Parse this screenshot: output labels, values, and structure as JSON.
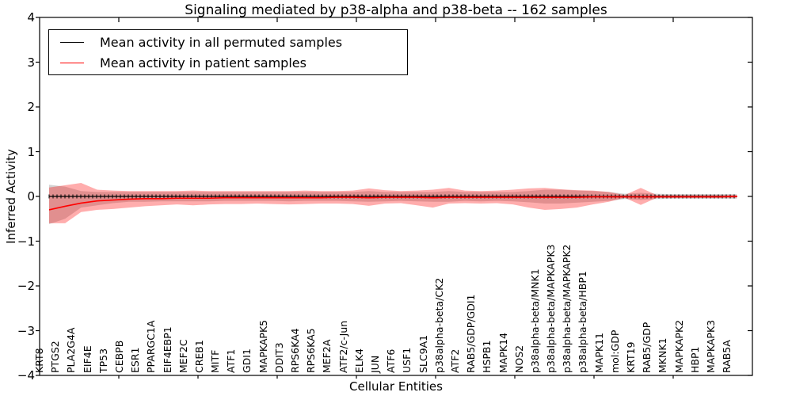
{
  "chart_data": {
    "type": "line",
    "title": "Signaling mediated by p38-alpha and p38-beta -- 162 samples",
    "xlabel": "Cellular Entities",
    "ylabel": "Inferred Activity",
    "ylim": [
      -4,
      4
    ],
    "yticks": [
      4,
      3,
      2,
      1,
      0,
      -1,
      -2,
      -3,
      -4
    ],
    "grid": false,
    "legend_position": "upper left",
    "categories": [
      "KRT8",
      "PTGS2",
      "PLA2G4A",
      "EIF4E",
      "TP53",
      "CEBPB",
      "ESR1",
      "PPARGC1A",
      "EIF4EBP1",
      "MEF2C",
      "CREB1",
      "MITF",
      "ATF1",
      "GDI1",
      "MAPKAPK5",
      "DDIT3",
      "RPS6KA4",
      "RPS6KA5",
      "MEF2A",
      "ATF2/c-Jun",
      "ELK4",
      "JUN",
      "ATF6",
      "USF1",
      "SLC9A1",
      "p38alpha-beta/CK2",
      "ATF2",
      "RAB5/GDP/GDI1",
      "HSPB1",
      "MAPK14",
      "NOS2",
      "p38alpha-beta/MNK1",
      "p38alpha-beta/MAPKAPK3",
      "p38alpha-beta/MAPKAPK2",
      "p38alpha-beta/HBP1",
      "MAPK11",
      "mol:GDP",
      "KRT19",
      "RAB5/GDP",
      "MKNK1",
      "MAPKAPK2",
      "HBP1",
      "MAPKAPK3",
      "RAB5A"
    ],
    "series": [
      {
        "name": "Mean activity in all permuted samples",
        "color": "#000000",
        "marker": "dense-vertical-ticks",
        "values": [
          0,
          0,
          0,
          0,
          0,
          0,
          0,
          0,
          0,
          0,
          0,
          0,
          0,
          0,
          0,
          0,
          0,
          0,
          0,
          0,
          0,
          0,
          0,
          0,
          0,
          0,
          0,
          0,
          0,
          0,
          0,
          0,
          0,
          0,
          0,
          0,
          0,
          0,
          0,
          0,
          0,
          0,
          0,
          0
        ]
      },
      {
        "name": "Mean activity in patient samples",
        "color": "#ff0000",
        "marker": "none",
        "values": [
          -0.3,
          -0.22,
          -0.15,
          -0.1,
          -0.08,
          -0.06,
          -0.05,
          -0.05,
          -0.04,
          -0.04,
          -0.04,
          -0.03,
          -0.03,
          -0.03,
          -0.03,
          -0.03,
          -0.03,
          -0.03,
          -0.02,
          -0.02,
          -0.03,
          -0.02,
          -0.02,
          -0.02,
          -0.03,
          -0.02,
          -0.02,
          -0.02,
          -0.02,
          -0.02,
          -0.02,
          -0.02,
          -0.02,
          -0.02,
          -0.01,
          -0.01,
          -0.01,
          -0.01,
          -0.01,
          -0.01,
          -0.01,
          -0.01,
          -0.01,
          0.0
        ]
      }
    ],
    "bands": [
      {
        "name": "permuted samples activity range",
        "color": "#808080",
        "opacity": 0.35,
        "upper": [
          0.26,
          0.22,
          0.12,
          0.1,
          0.1,
          0.1,
          0.1,
          0.1,
          0.1,
          0.1,
          0.1,
          0.1,
          0.1,
          0.1,
          0.1,
          0.1,
          0.1,
          0.1,
          0.1,
          0.1,
          0.12,
          0.1,
          0.1,
          0.1,
          0.1,
          0.12,
          0.1,
          0.1,
          0.1,
          0.1,
          0.12,
          0.15,
          0.15,
          0.13,
          0.12,
          0.1,
          0.06,
          0.08,
          0.06,
          0.05,
          0.05,
          0.05,
          0.05,
          0.05
        ],
        "lower": [
          -0.62,
          -0.5,
          -0.25,
          -0.2,
          -0.15,
          -0.12,
          -0.12,
          -0.11,
          -0.11,
          -0.11,
          -0.11,
          -0.1,
          -0.1,
          -0.1,
          -0.1,
          -0.11,
          -0.1,
          -0.1,
          -0.1,
          -0.11,
          -0.12,
          -0.11,
          -0.1,
          -0.11,
          -0.12,
          -0.12,
          -0.1,
          -0.11,
          -0.1,
          -0.11,
          -0.13,
          -0.16,
          -0.16,
          -0.14,
          -0.12,
          -0.1,
          -0.06,
          -0.08,
          -0.06,
          -0.05,
          -0.05,
          -0.05,
          -0.05,
          -0.05
        ]
      },
      {
        "name": "patient samples activity range",
        "color": "#ff0000",
        "opacity": 0.32,
        "upper": [
          0.2,
          0.25,
          0.3,
          0.15,
          0.13,
          0.12,
          0.12,
          0.12,
          0.12,
          0.13,
          0.12,
          0.12,
          0.12,
          0.12,
          0.12,
          0.12,
          0.13,
          0.12,
          0.12,
          0.13,
          0.18,
          0.14,
          0.12,
          0.13,
          0.15,
          0.19,
          0.13,
          0.12,
          0.13,
          0.15,
          0.18,
          0.19,
          0.16,
          0.14,
          0.13,
          0.1,
          0.03,
          0.19,
          0.03,
          0.03,
          0.03,
          0.03,
          0.03,
          0.03
        ],
        "lower": [
          -0.6,
          -0.6,
          -0.35,
          -0.3,
          -0.28,
          -0.25,
          -0.22,
          -0.2,
          -0.18,
          -0.2,
          -0.18,
          -0.17,
          -0.17,
          -0.16,
          -0.17,
          -0.18,
          -0.17,
          -0.16,
          -0.16,
          -0.17,
          -0.21,
          -0.16,
          -0.15,
          -0.2,
          -0.25,
          -0.16,
          -0.15,
          -0.16,
          -0.15,
          -0.18,
          -0.25,
          -0.3,
          -0.28,
          -0.25,
          -0.18,
          -0.12,
          -0.03,
          -0.19,
          -0.03,
          -0.03,
          -0.03,
          -0.03,
          -0.03,
          -0.03
        ]
      }
    ]
  },
  "legend": {
    "items": [
      {
        "label": "Mean activity in all permuted samples",
        "color": "#000000"
      },
      {
        "label": "Mean activity in patient samples",
        "color": "#ff0000"
      }
    ]
  }
}
